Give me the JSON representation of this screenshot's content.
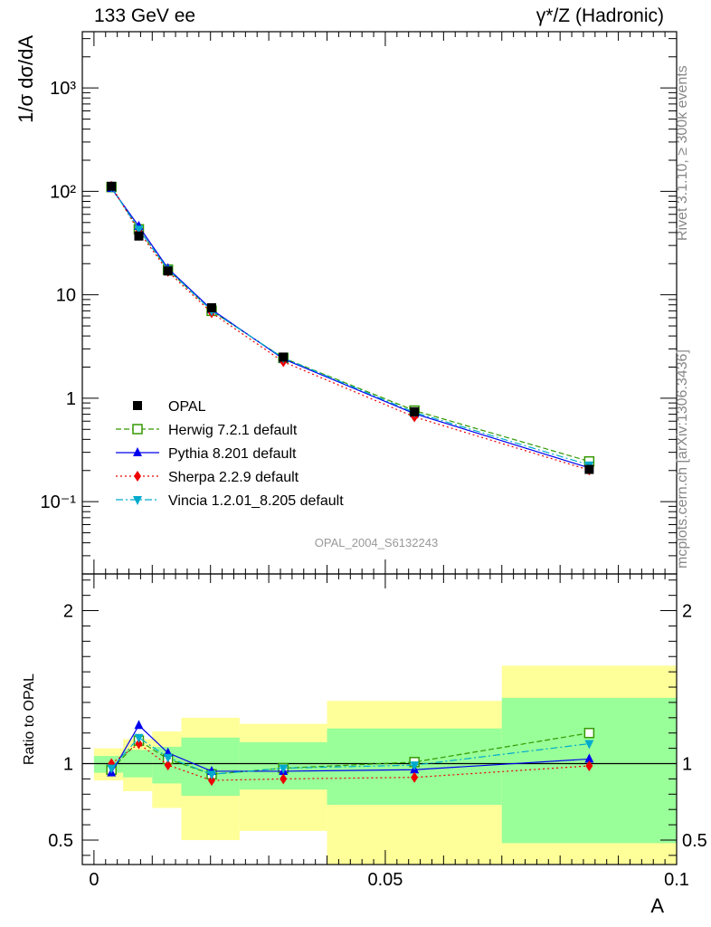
{
  "header": {
    "left": "133 GeV ee",
    "right": "γ*/Z (Hadronic)"
  },
  "side_labels": {
    "rivet": "Rivet 3.1.10, ≥ 300k events",
    "mcplots": "mcplots.cern.ch [arXiv:1306.3436]"
  },
  "watermark": "OPAL_2004_S6132243",
  "chart_data": [
    {
      "type": "line",
      "panel": "main",
      "ylabel": "1/σ dσ/dA",
      "yscale": "log",
      "ylim": [
        0.02,
        3500
      ],
      "xlim": [
        -0.002,
        0.1
      ],
      "y_ticks": [
        "10⁻¹",
        "1",
        "10",
        "10²",
        "10³"
      ],
      "y_tick_values": [
        0.1,
        1,
        10,
        100,
        1000
      ],
      "x": [
        0.003,
        0.0077,
        0.0127,
        0.0202,
        0.0325,
        0.055,
        0.085
      ],
      "legend_position": "lower-left",
      "series": [
        {
          "name": "OPAL",
          "marker": "square",
          "style": "none",
          "color": "#000000",
          "values": [
            112,
            37,
            17,
            7.5,
            2.5,
            0.74,
            0.205
          ]
        },
        {
          "name": "Herwig 7.2.1 default",
          "marker": "open-square",
          "style": "dashed",
          "color": "#339900",
          "values": [
            110,
            43,
            17.5,
            7.0,
            2.45,
            0.76,
            0.245
          ]
        },
        {
          "name": "Pythia 8.201 default",
          "marker": "triangle-up",
          "style": "solid",
          "color": "#0000ee",
          "values": [
            107,
            46,
            18,
            7.2,
            2.4,
            0.71,
            0.212
          ]
        },
        {
          "name": "Sherpa 2.2.9 default",
          "marker": "diamond",
          "style": "dotted",
          "color": "#ee0000",
          "values": [
            112,
            41,
            16.8,
            6.7,
            2.25,
            0.66,
            0.202
          ]
        },
        {
          "name": "Vincia 1.2.01_8.205 default",
          "marker": "triangle-down",
          "style": "dashdot",
          "color": "#00aacc",
          "values": [
            109,
            43,
            17.6,
            7.0,
            2.45,
            0.73,
            0.226
          ]
        }
      ]
    },
    {
      "type": "line",
      "panel": "ratio",
      "ylabel": "Ratio to OPAL",
      "xlabel": "A",
      "ylim": [
        0.34,
        2.24
      ],
      "xlim": [
        -0.002,
        0.1
      ],
      "y_ticks": [
        "0.5",
        "1",
        "2"
      ],
      "y_tick_values": [
        0.5,
        1,
        2
      ],
      "x_ticks": [
        "0",
        "0.05",
        "0.1"
      ],
      "x_tick_values": [
        0,
        0.05,
        0.1
      ],
      "reference": 1,
      "bands": {
        "edges": [
          0,
          0.005,
          0.01,
          0.015,
          0.025,
          0.04,
          0.07,
          0.1
        ],
        "yellow_low": [
          0.89,
          0.82,
          0.71,
          0.5,
          0.56,
          0.34,
          0.34
        ],
        "yellow_high": [
          1.1,
          1.16,
          1.21,
          1.3,
          1.26,
          1.41,
          1.64
        ],
        "green_low": [
          0.94,
          0.91,
          0.87,
          0.79,
          0.83,
          0.73,
          0.48
        ],
        "green_high": [
          1.05,
          1.09,
          1.11,
          1.17,
          1.14,
          1.23,
          1.43
        ],
        "yellow_color": "#ffff99",
        "green_color": "#99ff99"
      },
      "x": [
        0.003,
        0.0077,
        0.0127,
        0.0202,
        0.0325,
        0.055,
        0.085
      ],
      "series": [
        {
          "name": "Herwig 7.2.1 default",
          "marker": "open-square",
          "style": "dashed",
          "color": "#339900",
          "values": [
            0.96,
            1.15,
            1.03,
            0.93,
            0.97,
            1.01,
            1.2
          ]
        },
        {
          "name": "Pythia 8.201 default",
          "marker": "triangle-up",
          "style": "solid",
          "color": "#0000ee",
          "values": [
            0.94,
            1.25,
            1.07,
            0.95,
            0.95,
            0.96,
            1.03
          ]
        },
        {
          "name": "Sherpa 2.2.9 default",
          "marker": "diamond",
          "style": "dotted",
          "color": "#ee0000",
          "values": [
            1.0,
            1.13,
            0.99,
            0.89,
            0.9,
            0.91,
            0.985
          ]
        },
        {
          "name": "Vincia 1.2.01_8.205 default",
          "marker": "triangle-down",
          "style": "dashdot",
          "color": "#00aacc",
          "values": [
            0.97,
            1.17,
            1.04,
            0.93,
            0.97,
            0.99,
            1.13
          ]
        }
      ]
    }
  ]
}
